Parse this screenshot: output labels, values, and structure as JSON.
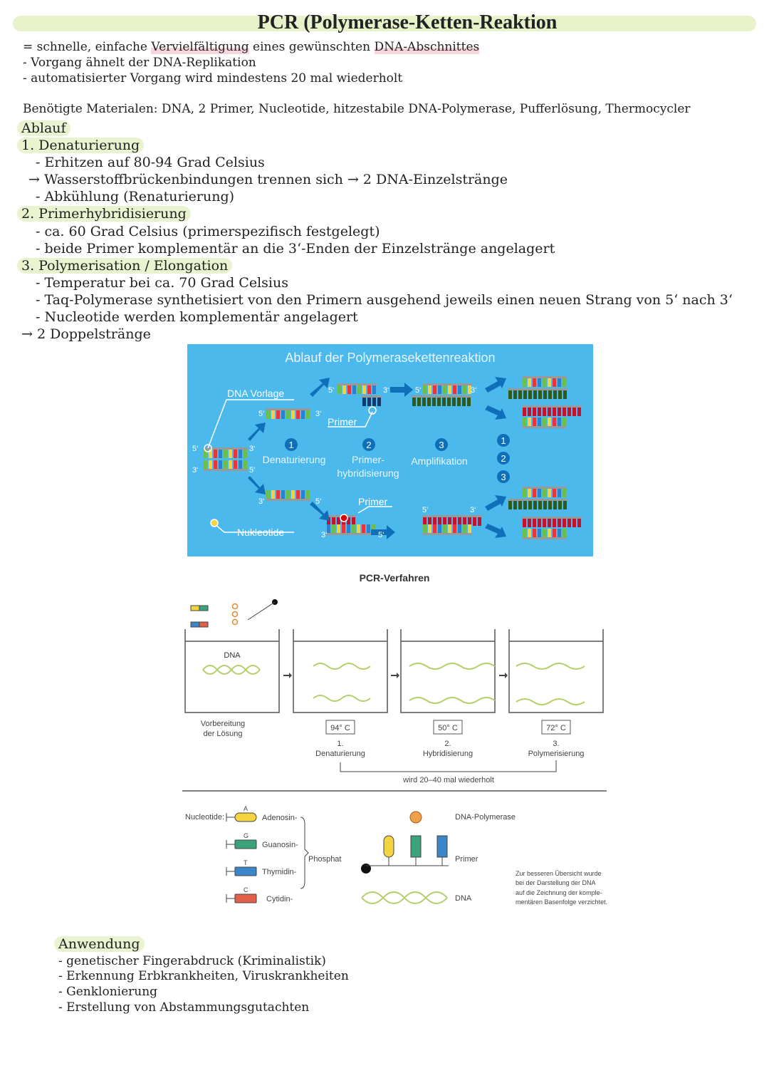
{
  "title": "PCR (Polymerase-Ketten-Reaktion",
  "intro": {
    "line1_prefix": "= schnelle, einfache ",
    "line1_mark1": "Vervielfältigung",
    "line1_mid": " eines gewünschten ",
    "line1_mark2": "DNA-Abschnittes",
    "line2": "- Vorgang ähnelt der DNA-Replikation",
    "line3": "- automatisierter Vorgang wird mindestens 20 mal wiederholt"
  },
  "materials": "Benötigte Materialen: DNA, 2 Primer, Nucleotide, hitzestabile DNA-Polymerase, Pufferlösung, Thermocycler",
  "ablauf": {
    "heading": "Ablauf",
    "step1": {
      "title": "1. Denaturierung",
      "lines": [
        "- Erhitzen auf 80-94 Grad Celsius",
        "Wasserstoffbrückenbindungen trennen sich",
        "2 DNA-Einzelstränge",
        "- Abkühlung (Renaturierung)"
      ]
    },
    "step2": {
      "title": "2. Primerhybridisierung",
      "lines": [
        "- ca. 60 Grad Celsius (primerspezifisch festgelegt)",
        "- beide Primer komplementär an die 3‘-Enden der Einzelstränge angelagert"
      ]
    },
    "step3": {
      "title": "3. Polymerisation / Elongation",
      "lines": [
        "- Temperatur bei ca. 70 Grad Celsius",
        "- Taq-Polymerase synthetisiert von den Primern ausgehend jeweils einen neuen Strang von 5‘ nach 3‘",
        "- Nucleotide werden komplementär angelagert"
      ]
    },
    "result": "2 Doppelstränge",
    "arrow": "→"
  },
  "figure1": {
    "title": "Ablauf der Polymerasekettenreaktion",
    "dna_template": "DNA Vorlage",
    "primer": "Primer",
    "nucleotides": "Nukleotide",
    "steps": [
      {
        "num": "1",
        "label": "Denaturierung"
      },
      {
        "num": "2",
        "label": "Primer-",
        "label2": "hybridisierung"
      },
      {
        "num": "3",
        "label": "Amplifikation"
      }
    ],
    "five": "5‘",
    "three": "3‘",
    "background": "#4cb9ec",
    "arrow_color": "#0f6fb8"
  },
  "figure2": {
    "title": "PCR-Verfahren",
    "dna": "DNA",
    "prep": [
      "Vorbereitung",
      "der Lösung"
    ],
    "temps": [
      "94° C",
      "50° C",
      "72° C"
    ],
    "step_nums": [
      "1.",
      "2.",
      "3."
    ],
    "step_labels": [
      "Denaturierung",
      "Hybridisierung",
      "Polymerisierung"
    ],
    "repeat": "wird 20–40 mal wiederholt",
    "legend": {
      "nucleotide": "Nucleotide:",
      "bases": [
        {
          "letter": "A",
          "name": "Adenosin-",
          "color": "#f5d442"
        },
        {
          "letter": "G",
          "name": "Guanosin-",
          "color": "#3aa37a"
        },
        {
          "letter": "T",
          "name": "Thymidin-",
          "color": "#3a86c8"
        },
        {
          "letter": "C",
          "name": "Cytidin-",
          "color": "#e0604a"
        }
      ],
      "phosphat": "Phosphat",
      "polymerase": "DNA-Polymerase",
      "primer": "Primer",
      "dna": "DNA",
      "note": [
        "Zur besseren Übersicht wurde",
        "bei der Darstellung der DNA",
        "auf die Zeichnung der komple-",
        "mentären Basenfolge verzichtet."
      ]
    }
  },
  "anwendung": {
    "heading": "Anwendung",
    "items": [
      "- genetischer Fingerabdruck (Kriminalistik)",
      "- Erkennung Erbkrankheiten, Viruskrankheiten",
      "- Genklonierung",
      "- Erstellung von Abstammungsgutachten"
    ]
  }
}
